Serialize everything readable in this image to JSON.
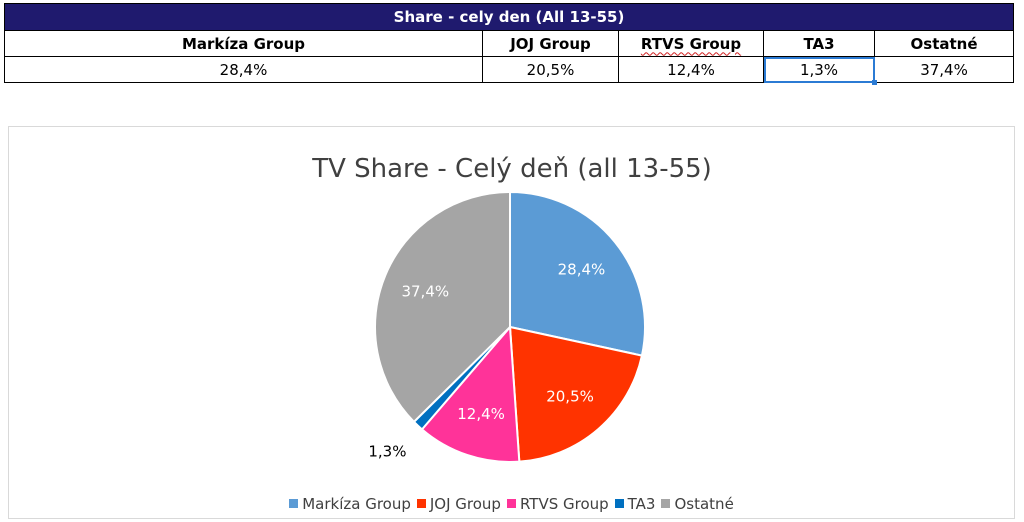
{
  "table": {
    "title": "Share - cely den (All 13-55)",
    "headers": [
      "Markíza Group",
      "JOJ Group",
      "RTVS Group",
      "TA3",
      "Ostatné"
    ],
    "values": [
      "28,4%",
      "20,5%",
      "12,4%",
      "1,3%",
      "37,4%"
    ]
  },
  "chart_data": {
    "type": "pie",
    "title": "TV Share - Celý deň (all 13-55)",
    "categories": [
      "Markíza Group",
      "JOJ Group",
      "RTVS Group",
      "TA3",
      "Ostatné"
    ],
    "values": [
      28.4,
      20.5,
      12.4,
      1.3,
      37.4
    ],
    "labels": [
      "28,4%",
      "20,5%",
      "12,4%",
      "1,3%",
      "37,4%"
    ],
    "colors": [
      "#5b9bd5",
      "#ff3300",
      "#ff3399",
      "#0070c0",
      "#a5a5a5"
    ],
    "label_colors": [
      "#ffffff",
      "#ffffff",
      "#ffffff",
      "#000000",
      "#ffffff"
    ],
    "legend_position": "bottom"
  }
}
